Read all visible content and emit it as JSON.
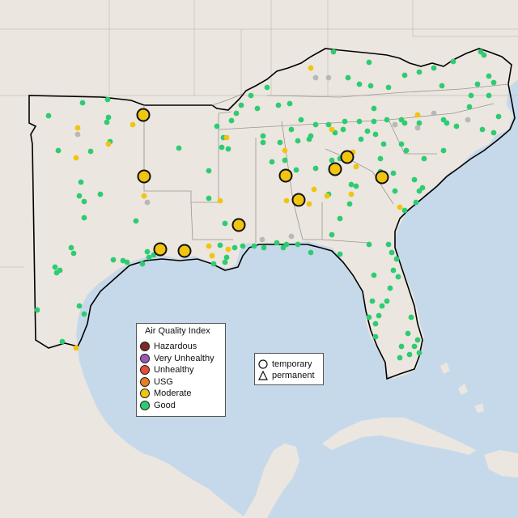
{
  "legend": {
    "title": "Air Quality Index",
    "categories": [
      {
        "label": "Hazardous",
        "color": "#7e2a2a"
      },
      {
        "label": "Very Unhealthy",
        "color": "#9b59b6"
      },
      {
        "label": "Unhealthy",
        "color": "#e74c3c"
      },
      {
        "label": "USG",
        "color": "#e67e22"
      },
      {
        "label": "Moderate",
        "color": "#f1c40f"
      },
      {
        "label": "Good",
        "color": "#2ecc71"
      }
    ]
  },
  "type_legend": {
    "temporary": "temporary",
    "permanent": "permanent"
  },
  "colors": {
    "water": "#c6d9ea",
    "land": "#ebe6e0",
    "good": "#2ecc71",
    "moderate": "#f1c40f",
    "no_data": "#b8b8b8"
  }
}
